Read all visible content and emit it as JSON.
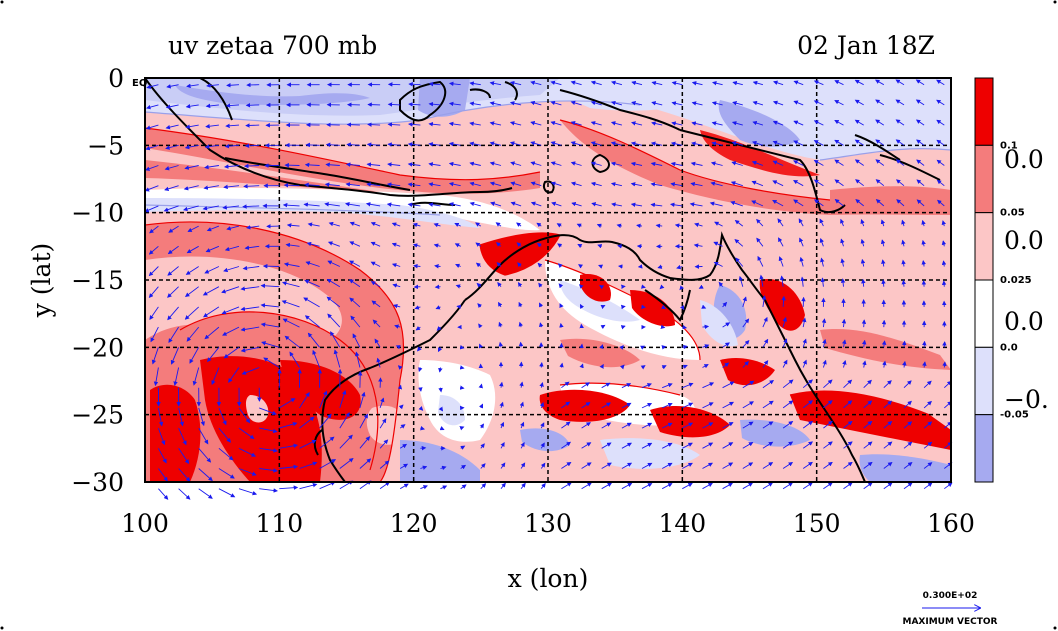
{
  "chart_data": {
    "type": "heatmap",
    "title_left": "uv zetaa 700 mb",
    "title_right": "02 Jan 18Z",
    "xlabel": "x (lon)",
    "ylabel": "y (lat)",
    "xlim": [
      100,
      160
    ],
    "ylim": [
      -30,
      0
    ],
    "x_ticks": [
      100,
      110,
      120,
      130,
      140,
      150,
      160
    ],
    "y_ticks": [
      0,
      -5,
      -10,
      -15,
      -20,
      -25,
      -30
    ],
    "y_tick_labels": [
      "0",
      "−5",
      "−10",
      "−15",
      "−20",
      "−25",
      "−30"
    ],
    "eq_label": "EQ",
    "grid": true,
    "colorbar": {
      "levels": [
        -0.05,
        0.0,
        0.025,
        0.05,
        0.1
      ],
      "level_labels": [
        "-0.05",
        "0.0",
        "0.025",
        "0.05",
        "0.1"
      ],
      "band_colors": [
        "#a6aaf0",
        "#dde0fb",
        "#ffffff",
        "#fcc6c6",
        "#f47c7c",
        "#ee0000"
      ],
      "big_labels": [
        "0.0",
        "0.0",
        "0.0",
        "−0."
      ]
    },
    "fill_colors": {
      "neg_strong": "#a6aaf0",
      "neg_weak": "#dde0fb",
      "pos_weak": "#fcc6c6",
      "pos_mid": "#f47c7c",
      "pos_strong": "#ee0000",
      "contour_pos": "#ee0000",
      "contour_neg": "#9aa0ea",
      "vector": "#1a1aee",
      "coast": "#000000"
    },
    "max_vector": {
      "value": "0.300E+02",
      "label": "MAXIMUM VECTOR"
    }
  }
}
